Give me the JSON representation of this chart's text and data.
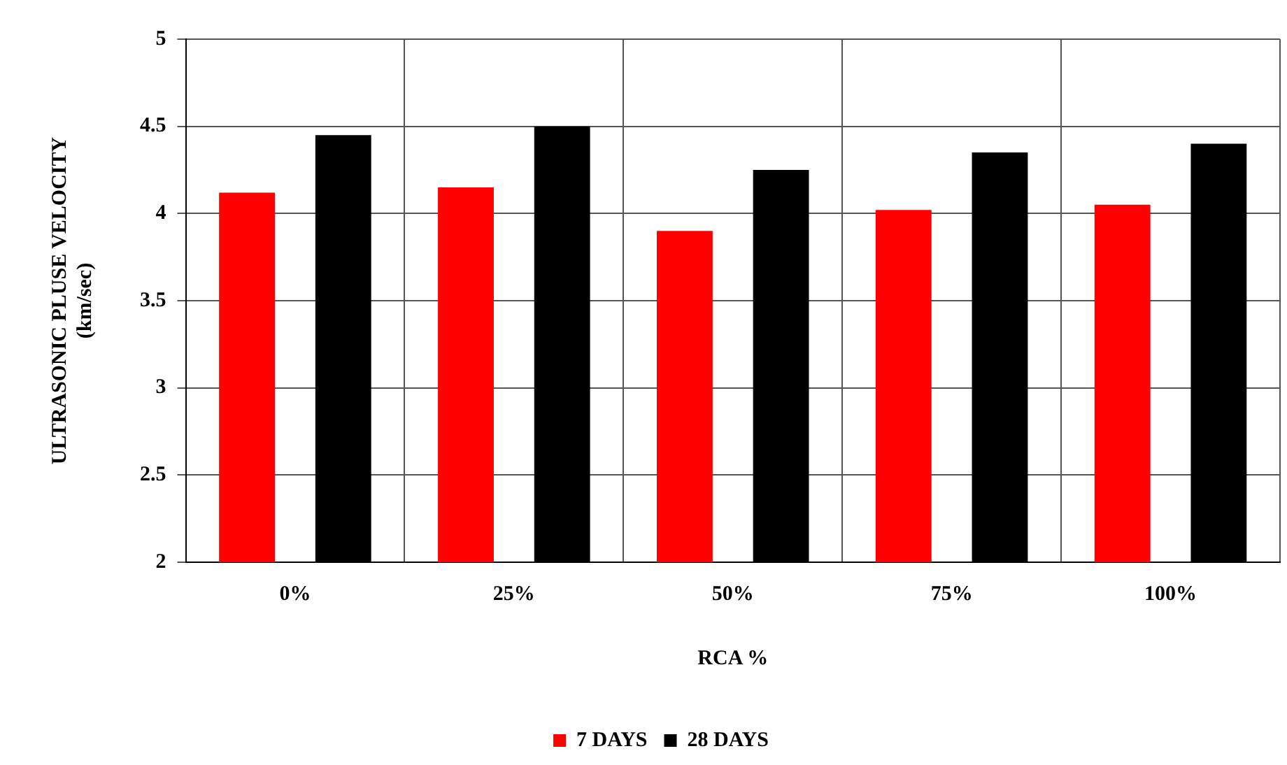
{
  "chart_data": {
    "type": "bar",
    "xlabel": "RCA %",
    "ylabel": "ULTRASONIC PLUSE VELOCITY\n(km/sec)",
    "categories": [
      "0%",
      "25%",
      "50%",
      "75%",
      "100%"
    ],
    "series": [
      {
        "name": "7 DAYS",
        "color": "#ff0000",
        "values": [
          4.12,
          4.15,
          3.9,
          4.02,
          4.05
        ]
      },
      {
        "name": "28 DAYS",
        "color": "#000000",
        "values": [
          4.45,
          4.5,
          4.25,
          4.35,
          4.4
        ]
      }
    ],
    "ylim": [
      2,
      5
    ],
    "yticks": [
      2,
      2.5,
      3,
      3.5,
      4,
      4.5,
      5
    ],
    "grid": true,
    "legend": "bottom"
  }
}
